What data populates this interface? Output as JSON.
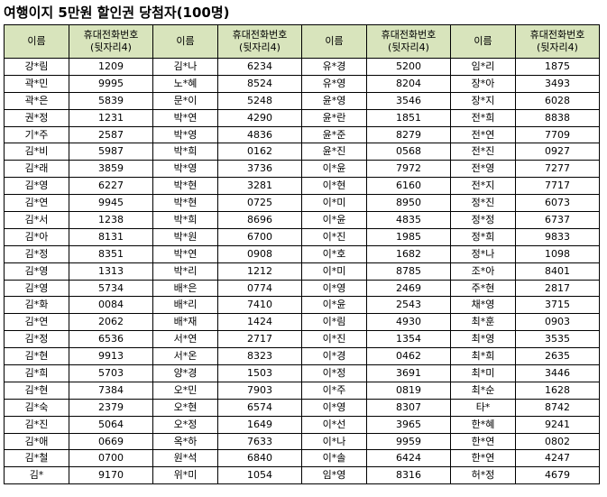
{
  "title": "여행이지 5만원 할인권 당첨자(100명)",
  "header": {
    "name_label": "이름",
    "phone_label": "휴대전화번호",
    "phone_sub_label": "(뒷자리4)"
  },
  "rows": [
    [
      "강*림",
      "1209",
      "김*나",
      "6234",
      "유*경",
      "5200",
      "임*리",
      "1875"
    ],
    [
      "곽*민",
      "9995",
      "노*혜",
      "8524",
      "유*영",
      "8204",
      "장*아",
      "3493"
    ],
    [
      "곽*은",
      "5839",
      "문*이",
      "5248",
      "윤*영",
      "3546",
      "장*지",
      "6028"
    ],
    [
      "권*정",
      "1231",
      "박*연",
      "4290",
      "윤*란",
      "1851",
      "전*희",
      "8838"
    ],
    [
      "기*주",
      "2587",
      "박*영",
      "4836",
      "윤*준",
      "8279",
      "전*연",
      "7709"
    ],
    [
      "김*비",
      "5987",
      "박*희",
      "0162",
      "윤*진",
      "0568",
      "전*진",
      "0927"
    ],
    [
      "김*래",
      "3859",
      "박*영",
      "3736",
      "이*윤",
      "7972",
      "전*영",
      "7277"
    ],
    [
      "김*영",
      "6227",
      "박*현",
      "3281",
      "이*현",
      "6160",
      "전*지",
      "7717"
    ],
    [
      "김*연",
      "9945",
      "박*현",
      "0725",
      "이*미",
      "8950",
      "정*진",
      "6073"
    ],
    [
      "김*서",
      "1238",
      "박*희",
      "8696",
      "이*윤",
      "4835",
      "정*정",
      "6737"
    ],
    [
      "김*아",
      "8131",
      "박*원",
      "6700",
      "이*진",
      "1985",
      "정*희",
      "9833"
    ],
    [
      "김*정",
      "8351",
      "박*연",
      "0908",
      "이*호",
      "1682",
      "정*나",
      "1098"
    ],
    [
      "김*영",
      "1313",
      "박*리",
      "1212",
      "이*미",
      "8785",
      "조*아",
      "8401"
    ],
    [
      "김*영",
      "5734",
      "배*은",
      "0774",
      "이*영",
      "2469",
      "주*현",
      "2817"
    ],
    [
      "김*화",
      "0084",
      "배*리",
      "7410",
      "이*윤",
      "2543",
      "채*영",
      "3715"
    ],
    [
      "김*연",
      "2062",
      "배*재",
      "1424",
      "이*림",
      "4930",
      "최*훈",
      "0903"
    ],
    [
      "김*정",
      "6536",
      "서*연",
      "2717",
      "이*진",
      "1354",
      "최*영",
      "3535"
    ],
    [
      "김*현",
      "9913",
      "서*온",
      "8323",
      "이*경",
      "0462",
      "최*희",
      "2635"
    ],
    [
      "김*희",
      "5703",
      "양*경",
      "1503",
      "이*정",
      "3691",
      "최*미",
      "3446"
    ],
    [
      "김*현",
      "7384",
      "오*민",
      "7903",
      "이*주",
      "0819",
      "최*순",
      "1628"
    ],
    [
      "김*숙",
      "2379",
      "오*현",
      "6574",
      "이*영",
      "8307",
      "타*",
      "8742"
    ],
    [
      "김*진",
      "5064",
      "오*정",
      "1649",
      "이*선",
      "3965",
      "한*혜",
      "9241"
    ],
    [
      "김*애",
      "0669",
      "옥*하",
      "7633",
      "이*나",
      "9959",
      "한*연",
      "0802"
    ],
    [
      "김*철",
      "0700",
      "원*석",
      "6840",
      "이*솔",
      "6424",
      "한*연",
      "4247"
    ],
    [
      "김*",
      "9170",
      "위*미",
      "1054",
      "임*영",
      "8316",
      "허*정",
      "4679"
    ]
  ]
}
